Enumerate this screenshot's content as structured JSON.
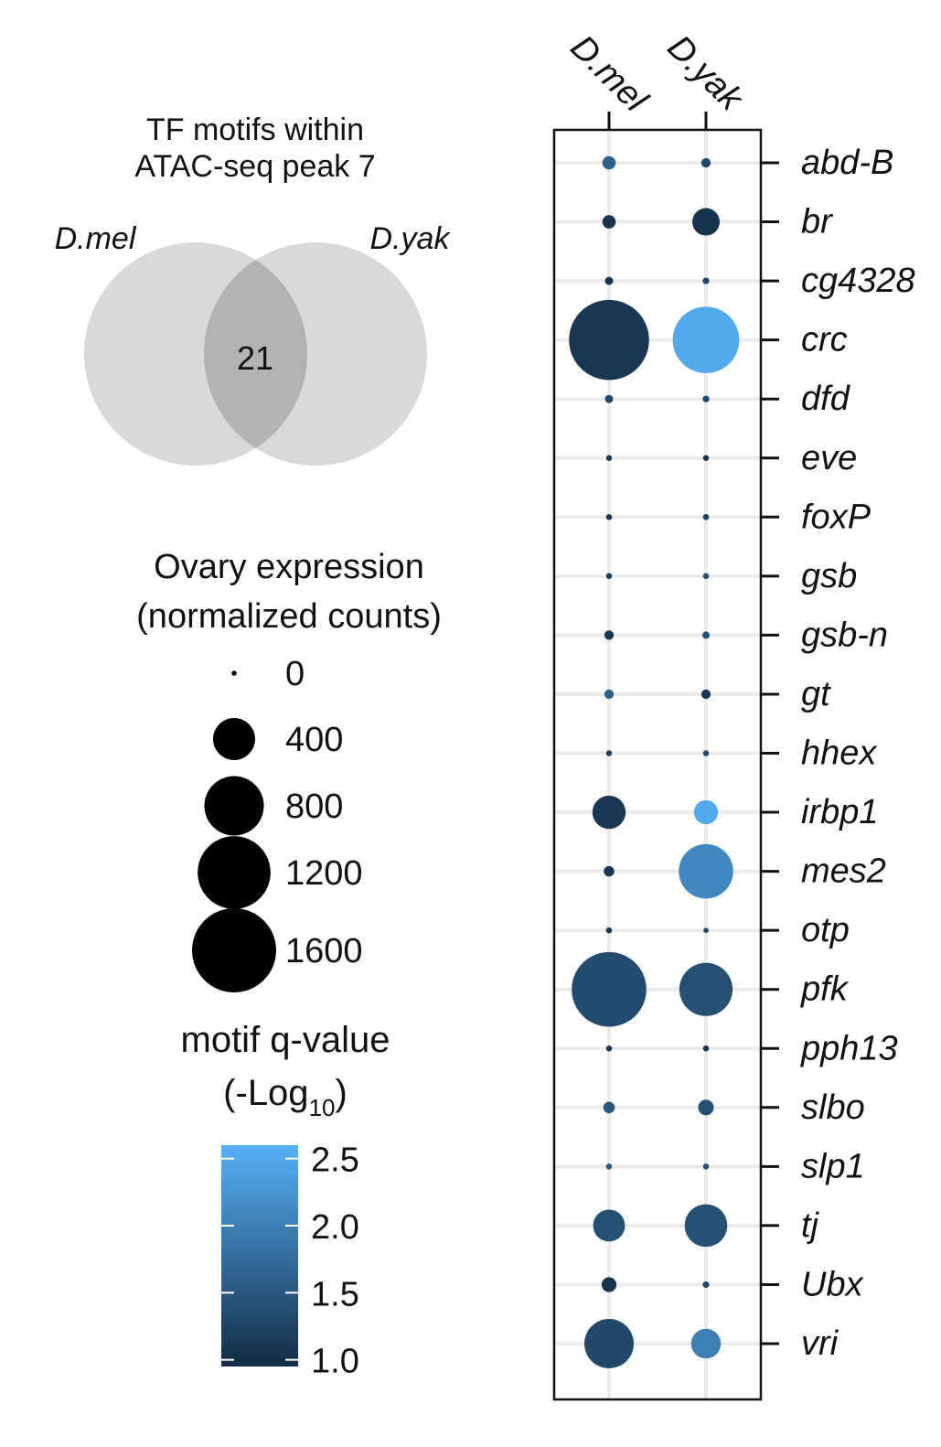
{
  "venn": {
    "title_line1": "TF motifs within",
    "title_line2": "ATAC-seq peak 7",
    "left_label": "D.mel",
    "right_label": "D.yak",
    "overlap_count": "21",
    "circle_color": "#d9d9d9",
    "overlap_color": "#b3b3b3"
  },
  "size_legend": {
    "title_line1": "Ovary expression",
    "title_line2": "(normalized counts)",
    "items": [
      {
        "label": "0",
        "value": 0
      },
      {
        "label": "400",
        "value": 400
      },
      {
        "label": "800",
        "value": 800
      },
      {
        "label": "1200",
        "value": 1200
      },
      {
        "label": "1600",
        "value": 1600
      }
    ]
  },
  "color_legend": {
    "title_line1": "motif q-value",
    "title_line2_main": "(-Log",
    "title_line2_sub": "10",
    "title_line2_end": ")",
    "ticks": [
      {
        "label": "2.5",
        "value": 2.5
      },
      {
        "label": "2.0",
        "value": 2.0
      },
      {
        "label": "1.5",
        "value": 1.5
      },
      {
        "label": "1.0",
        "value": 1.0
      }
    ],
    "range": [
      0.95,
      2.6
    ],
    "color_low": "#132b43",
    "color_high": "#56b1f7"
  },
  "chart_data": {
    "type": "scatter",
    "columns": [
      "D.mel",
      "D.yak"
    ],
    "rows": [
      "abd-B",
      "br",
      "cg4328",
      "crc",
      "dfd",
      "eve",
      "foxP",
      "gsb",
      "gsb-n",
      "gt",
      "hhex",
      "irbp1",
      "mes2",
      "otp",
      "pfk",
      "pph13",
      "slbo",
      "slp1",
      "tj",
      "Ubx",
      "vri"
    ],
    "size_label": "Ovary expression (normalized counts)",
    "color_label": "motif q-value (-Log10)",
    "points": [
      {
        "row": "abd-B",
        "column": "D.mel",
        "expression": 40,
        "qvalue": 1.6
      },
      {
        "row": "abd-B",
        "column": "D.yak",
        "expression": 20,
        "qvalue": 1.3
      },
      {
        "row": "br",
        "column": "D.mel",
        "expression": 40,
        "qvalue": 1.05
      },
      {
        "row": "br",
        "column": "D.yak",
        "expression": 170,
        "qvalue": 1.05
      },
      {
        "row": "cg4328",
        "column": "D.mel",
        "expression": 15,
        "qvalue": 1.1
      },
      {
        "row": "cg4328",
        "column": "D.yak",
        "expression": 10,
        "qvalue": 1.3
      },
      {
        "row": "crc",
        "column": "D.mel",
        "expression": 1450,
        "qvalue": 1.1
      },
      {
        "row": "crc",
        "column": "D.yak",
        "expression": 1000,
        "qvalue": 2.5
      },
      {
        "row": "dfd",
        "column": "D.mel",
        "expression": 15,
        "qvalue": 1.3
      },
      {
        "row": "dfd",
        "column": "D.yak",
        "expression": 10,
        "qvalue": 1.3
      },
      {
        "row": "eve",
        "column": "D.mel",
        "expression": 8,
        "qvalue": 1.1
      },
      {
        "row": "eve",
        "column": "D.yak",
        "expression": 8,
        "qvalue": 1.1
      },
      {
        "row": "foxP",
        "column": "D.mel",
        "expression": 8,
        "qvalue": 1.1
      },
      {
        "row": "foxP",
        "column": "D.yak",
        "expression": 8,
        "qvalue": 1.2
      },
      {
        "row": "gsb",
        "column": "D.mel",
        "expression": 8,
        "qvalue": 1.2
      },
      {
        "row": "gsb",
        "column": "D.yak",
        "expression": 8,
        "qvalue": 1.4
      },
      {
        "row": "gsb-n",
        "column": "D.mel",
        "expression": 20,
        "qvalue": 1.1
      },
      {
        "row": "gsb-n",
        "column": "D.yak",
        "expression": 12,
        "qvalue": 1.4
      },
      {
        "row": "gt",
        "column": "D.mel",
        "expression": 20,
        "qvalue": 1.6
      },
      {
        "row": "gt",
        "column": "D.yak",
        "expression": 20,
        "qvalue": 1.1
      },
      {
        "row": "hhex",
        "column": "D.mel",
        "expression": 8,
        "qvalue": 1.2
      },
      {
        "row": "hhex",
        "column": "D.yak",
        "expression": 8,
        "qvalue": 1.3
      },
      {
        "row": "irbp1",
        "column": "D.mel",
        "expression": 250,
        "qvalue": 1.1
      },
      {
        "row": "irbp1",
        "column": "D.yak",
        "expression": 130,
        "qvalue": 2.5
      },
      {
        "row": "mes2",
        "column": "D.mel",
        "expression": 25,
        "qvalue": 1.1
      },
      {
        "row": "mes2",
        "column": "D.yak",
        "expression": 670,
        "qvalue": 2.1
      },
      {
        "row": "otp",
        "column": "D.mel",
        "expression": 8,
        "qvalue": 1.1
      },
      {
        "row": "otp",
        "column": "D.yak",
        "expression": 5,
        "qvalue": 1.3
      },
      {
        "row": "pfk",
        "column": "D.mel",
        "expression": 1260,
        "qvalue": 1.35
      },
      {
        "row": "pfk",
        "column": "D.yak",
        "expression": 640,
        "qvalue": 1.4
      },
      {
        "row": "pph13",
        "column": "D.mel",
        "expression": 8,
        "qvalue": 1.1
      },
      {
        "row": "pph13",
        "column": "D.yak",
        "expression": 8,
        "qvalue": 1.1
      },
      {
        "row": "slbo",
        "column": "D.mel",
        "expression": 30,
        "qvalue": 1.5
      },
      {
        "row": "slbo",
        "column": "D.yak",
        "expression": 55,
        "qvalue": 1.4
      },
      {
        "row": "slp1",
        "column": "D.mel",
        "expression": 8,
        "qvalue": 1.5
      },
      {
        "row": "slp1",
        "column": "D.yak",
        "expression": 8,
        "qvalue": 1.4
      },
      {
        "row": "tj",
        "column": "D.mel",
        "expression": 230,
        "qvalue": 1.4
      },
      {
        "row": "tj",
        "column": "D.yak",
        "expression": 410,
        "qvalue": 1.4
      },
      {
        "row": "Ubx",
        "column": "D.mel",
        "expression": 50,
        "qvalue": 1.05
      },
      {
        "row": "Ubx",
        "column": "D.yak",
        "expression": 10,
        "qvalue": 1.3
      },
      {
        "row": "vri",
        "column": "D.mel",
        "expression": 550,
        "qvalue": 1.3
      },
      {
        "row": "vri",
        "column": "D.yak",
        "expression": 200,
        "qvalue": 2.0
      }
    ],
    "grid": true
  }
}
